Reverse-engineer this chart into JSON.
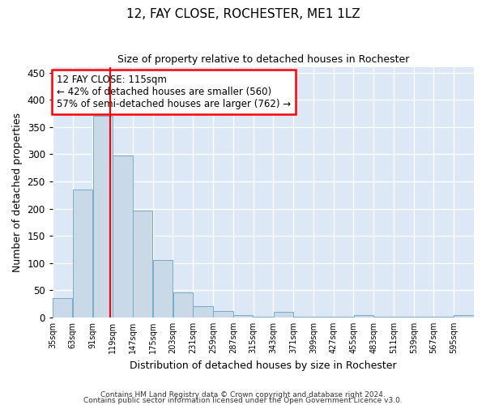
{
  "title": "12, FAY CLOSE, ROCHESTER, ME1 1LZ",
  "subtitle": "Size of property relative to detached houses in Rochester",
  "xlabel": "Distribution of detached houses by size in Rochester",
  "ylabel": "Number of detached properties",
  "bar_color": "#c9d9e8",
  "bar_edge_color": "#7aaac8",
  "background_color": "#dce8f5",
  "grid_color": "#ffffff",
  "red_line_x": 115,
  "annotation_line1": "12 FAY CLOSE: 115sqm",
  "annotation_line2": "← 42% of detached houses are smaller (560)",
  "annotation_line3": "57% of semi-detached houses are larger (762) →",
  "bin_edges": [
    35,
    63,
    91,
    119,
    147,
    175,
    203,
    231,
    259,
    287,
    315,
    343,
    371,
    399,
    427,
    455,
    483,
    511,
    539,
    567,
    595
  ],
  "bin_values": [
    35,
    235,
    370,
    298,
    197,
    105,
    46,
    21,
    12,
    5,
    2,
    10,
    2,
    1,
    1,
    4,
    1,
    1,
    1,
    1,
    4
  ],
  "ylim": [
    0,
    460
  ],
  "yticks": [
    0,
    50,
    100,
    150,
    200,
    250,
    300,
    350,
    400,
    450
  ],
  "footer_line1": "Contains HM Land Registry data © Crown copyright and database right 2024.",
  "footer_line2": "Contains public sector information licensed under the Open Government Licence v3.0."
}
